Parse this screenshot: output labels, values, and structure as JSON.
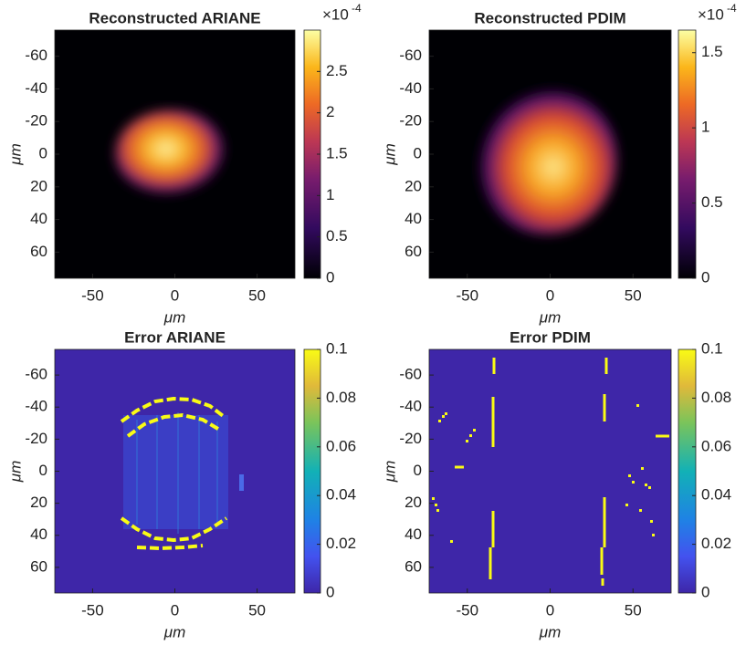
{
  "chart_data": [
    {
      "type": "heatmap",
      "title": "Reconstructed ARIANE",
      "xlabel": "μm",
      "ylabel": "μm",
      "xlim": [
        -73,
        73
      ],
      "ylim": [
        -76,
        76
      ],
      "xticks": [
        -50,
        0,
        50
      ],
      "yticks": [
        -60,
        -40,
        -20,
        0,
        20,
        40,
        60
      ],
      "colormap": "inferno",
      "clim": [
        0,
        3.0
      ],
      "cticks": [
        0,
        0.5,
        1,
        1.5,
        2,
        2.5
      ],
      "exponent_base": "×10",
      "exponent_power": "-4"
    },
    {
      "type": "heatmap",
      "title": "Reconstructed PDIM",
      "xlabel": "μm",
      "ylabel": "μm",
      "xlim": [
        -73,
        73
      ],
      "ylim": [
        -76,
        76
      ],
      "xticks": [
        -50,
        0,
        50
      ],
      "yticks": [
        -60,
        -40,
        -20,
        0,
        20,
        40,
        60
      ],
      "colormap": "inferno",
      "clim": [
        0,
        1.65
      ],
      "cticks": [
        0,
        0.5,
        1,
        1.5
      ],
      "exponent_base": "×10",
      "exponent_power": "-4"
    },
    {
      "type": "heatmap",
      "title": "Error ARIANE",
      "xlabel": "μm",
      "ylabel": "μm",
      "xlim": [
        -73,
        73
      ],
      "ylim": [
        -76,
        76
      ],
      "xticks": [
        -50,
        0,
        50
      ],
      "yticks": [
        -60,
        -40,
        -20,
        0,
        20,
        40,
        60
      ],
      "colormap": "parula",
      "clim": [
        0,
        0.1
      ],
      "cticks": [
        0,
        0.02,
        0.04,
        0.06,
        0.08,
        0.1
      ]
    },
    {
      "type": "heatmap",
      "title": "Error PDIM",
      "xlabel": "μm",
      "ylabel": "μm",
      "xlim": [
        -73,
        73
      ],
      "ylim": [
        -76,
        76
      ],
      "xticks": [
        -50,
        0,
        50
      ],
      "yticks": [
        -60,
        -40,
        -20,
        0,
        20,
        40,
        60
      ],
      "colormap": "parula",
      "clim": [
        0,
        0.1
      ],
      "cticks": [
        0,
        0.02,
        0.04,
        0.06,
        0.08,
        0.1
      ]
    }
  ]
}
